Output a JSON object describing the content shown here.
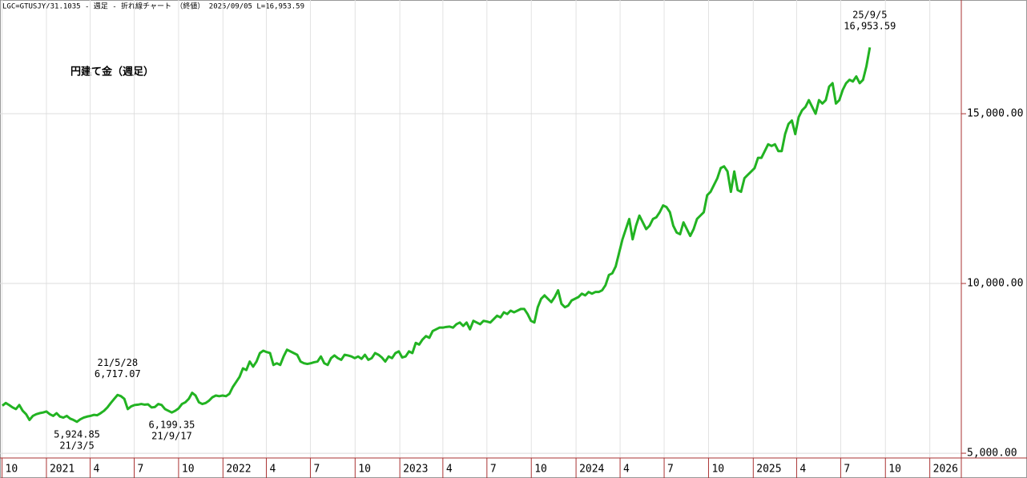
{
  "chart_data": {
    "type": "line",
    "header": "LGC=GTUSJY/31.1035 - 週足 - 折れ線チャート （終値） 2025/09/05 L=16,953.59",
    "series": [
      {
        "name": "円建て金（週足）",
        "color": "#22b322",
        "values": [
          6400,
          6480,
          6420,
          6350,
          6300,
          6420,
          6250,
          6150,
          5980,
          6100,
          6150,
          6180,
          6200,
          6230,
          6150,
          6100,
          6180,
          6080,
          6050,
          6100,
          6020,
          5980,
          5924.85,
          6000,
          6050,
          6080,
          6100,
          6130,
          6120,
          6180,
          6250,
          6350,
          6480,
          6600,
          6717.07,
          6680,
          6600,
          6300,
          6380,
          6420,
          6430,
          6450,
          6430,
          6440,
          6350,
          6360,
          6450,
          6420,
          6300,
          6250,
          6199.35,
          6250,
          6320,
          6450,
          6500,
          6600,
          6780,
          6700,
          6500,
          6450,
          6480,
          6550,
          6650,
          6700,
          6680,
          6700,
          6680,
          6750,
          6950,
          7100,
          7250,
          7500,
          7450,
          7700,
          7550,
          7700,
          7950,
          8020,
          7980,
          7950,
          7600,
          7650,
          7600,
          7850,
          8050,
          8000,
          7950,
          7900,
          7700,
          7650,
          7630,
          7650,
          7680,
          7700,
          7850,
          7650,
          7600,
          7800,
          7880,
          7800,
          7750,
          7900,
          7880,
          7850,
          7800,
          7850,
          7780,
          7900,
          7750,
          7800,
          7950,
          7900,
          7820,
          7700,
          7850,
          7800,
          7950,
          8000,
          7820,
          7850,
          8000,
          7950,
          8250,
          8200,
          8350,
          8450,
          8400,
          8600,
          8650,
          8700,
          8700,
          8720,
          8730,
          8700,
          8800,
          8850,
          8750,
          8850,
          8650,
          8900,
          8850,
          8800,
          8900,
          8880,
          8850,
          8950,
          9050,
          9000,
          9150,
          9100,
          9200,
          9150,
          9200,
          9250,
          9250,
          9100,
          8900,
          8850,
          9300,
          9550,
          9650,
          9550,
          9450,
          9600,
          9800,
          9400,
          9300,
          9350,
          9500,
          9550,
          9600,
          9700,
          9650,
          9750,
          9700,
          9750,
          9750,
          9800,
          9950,
          10250,
          10300,
          10500,
          10900,
          11300,
          11600,
          11900,
          11300,
          11700,
          12000,
          11800,
          11600,
          11700,
          11900,
          11950,
          12100,
          12300,
          12250,
          12100,
          11700,
          11500,
          11450,
          11800,
          11600,
          11400,
          11600,
          11900,
          12000,
          12100,
          12600,
          12700,
          12900,
          13100,
          13400,
          13450,
          13300,
          12700,
          13300,
          12750,
          12700,
          13100,
          13200,
          13300,
          13400,
          13700,
          13700,
          13900,
          14100,
          14050,
          14100,
          13900,
          13900,
          14400,
          14700,
          14800,
          14400,
          14900,
          15100,
          15200,
          15400,
          15200,
          15000,
          15400,
          15300,
          15400,
          15800,
          15900,
          15300,
          15400,
          15700,
          15900,
          16000,
          15950,
          16100,
          15900,
          16000,
          16400,
          16953.59
        ]
      }
    ],
    "annotations": [
      {
        "date": "21/3/5",
        "value": 5924.85,
        "label": "5,924.85"
      },
      {
        "date": "21/5/28",
        "value": 6717.07,
        "label": "6,717.07"
      },
      {
        "date": "21/9/17",
        "value": 6199.35,
        "label": "6,199.35"
      },
      {
        "date": "25/9/5",
        "value": 16953.59,
        "label": "16,953.59"
      }
    ],
    "xlim": [
      -0.7,
      283
    ],
    "xticks": [
      {
        "value": -0.1,
        "label": "10"
      },
      {
        "value": 13,
        "label": "2021"
      },
      {
        "value": 25.9,
        "label": "4"
      },
      {
        "value": 38.9,
        "label": "7"
      },
      {
        "value": 52,
        "label": "10"
      },
      {
        "value": 65.1,
        "label": "2022"
      },
      {
        "value": 77.9,
        "label": "4"
      },
      {
        "value": 90.9,
        "label": "7"
      },
      {
        "value": 104.1,
        "label": "10"
      },
      {
        "value": 117.3,
        "label": "2023"
      },
      {
        "value": 130,
        "label": "4"
      },
      {
        "value": 143,
        "label": "7"
      },
      {
        "value": 156.1,
        "label": "10"
      },
      {
        "value": 169.3,
        "label": "2024"
      },
      {
        "value": 182.3,
        "label": "4"
      },
      {
        "value": 195.3,
        "label": "7"
      },
      {
        "value": 208.4,
        "label": "10"
      },
      {
        "value": 221.6,
        "label": "2025"
      },
      {
        "value": 234.4,
        "label": "4"
      },
      {
        "value": 247.4,
        "label": "7"
      },
      {
        "value": 260.6,
        "label": "10"
      },
      {
        "value": 273.7,
        "label": "2026"
      }
    ],
    "ylim": [
      4860,
      18350
    ],
    "yticks": [
      {
        "value": 5000,
        "label": "5,000.00"
      },
      {
        "value": 10000,
        "label": "10,000.00"
      },
      {
        "value": 15000,
        "label": "15,000.00"
      }
    ],
    "grid": true
  }
}
